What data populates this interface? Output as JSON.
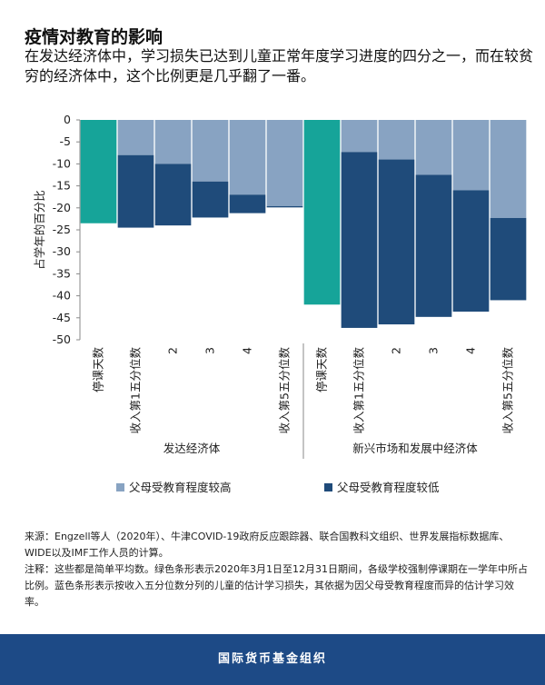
{
  "title": "疫情对教育的影响",
  "subtitle": "在发达经济体中，学习损失已达到儿童正常年度学习进度的四分之一，而在较贫穷的经济体中，这个比例更是几乎翻了一番。",
  "chart_data": {
    "type": "bar",
    "stacked": true,
    "ylabel": "占学年的百分比",
    "categories": [
      "停课天数",
      "收入第1五分位数",
      "2",
      "3",
      "4",
      "收入第5五分位数",
      "停课天数",
      "收入第1五分位数",
      "2",
      "3",
      "4",
      "收入第5五分位数"
    ],
    "groups": [
      "发达经济体",
      "新兴市场和发展中经济体"
    ],
    "closure_color": "#16a499",
    "closure_values": [
      -23.5,
      null,
      null,
      null,
      null,
      null,
      -42,
      null,
      null,
      null,
      null,
      null
    ],
    "series": [
      {
        "name": "父母受教育程度较高",
        "color": "#88a3c2",
        "values": [
          null,
          -8,
          -10,
          -14,
          -17,
          -19.6,
          null,
          -7.3,
          -9,
          -12.5,
          -16,
          -22.3
        ]
      },
      {
        "name": "父母受教育程度较低",
        "color": "#1f4b7a",
        "values": [
          null,
          -16.5,
          -14,
          -8.2,
          -4.2,
          -0.3,
          null,
          -40,
          -37.5,
          -32.3,
          -27.6,
          -18.7
        ]
      }
    ],
    "ylim": [
      -50,
      0
    ],
    "yticks": [
      0,
      -5,
      -10,
      -15,
      -20,
      -25,
      -30,
      -35,
      -40,
      -45,
      -50
    ]
  },
  "source": "来源：Engzell等人（2020年）、牛津COVID-19政府反应跟踪器、联合国教科文组织、世界发展指标数据库、WIDE以及IMF工作人员的计算。",
  "note": "注释：这些都是简单平均数。绿色条形表示2020年3月1日至12月31日期间，各级学校强制停课期在一学年中所占比例。蓝色条形表示按收入五分位数分列的儿童的估计学习损失，其依据为因父母受教育程度而异的估计学习效率。",
  "footer": "国际货币基金组织"
}
